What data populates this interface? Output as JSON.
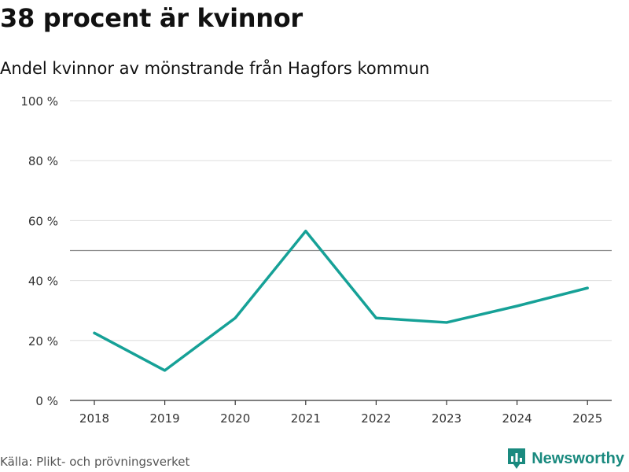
{
  "title": "38 procent är kvinnor",
  "subtitle": "Andel kvinnor av mönstrande från Hagfors kommun",
  "source": "Källa: Plikt- och prövningsverket",
  "brand": {
    "name": "Newsworthy",
    "icon": "newsworthy-logo-icon",
    "color": "#1a8a7f"
  },
  "chart_data": {
    "type": "line",
    "categories": [
      "2018",
      "2019",
      "2020",
      "2021",
      "2022",
      "2023",
      "2024",
      "2025"
    ],
    "series": [
      {
        "name": "Andel kvinnor",
        "values": [
          22.5,
          10,
          27.5,
          56.5,
          27.5,
          26,
          31.5,
          37.5
        ]
      }
    ],
    "ylim": [
      0,
      100
    ],
    "yticks": [
      0,
      20,
      40,
      60,
      80,
      100
    ],
    "ytick_labels": [
      "0 %",
      "20 %",
      "40 %",
      "60 %",
      "80 %",
      "100 %"
    ],
    "reference_line": 50,
    "line_color": "#16a197",
    "grid": true
  }
}
